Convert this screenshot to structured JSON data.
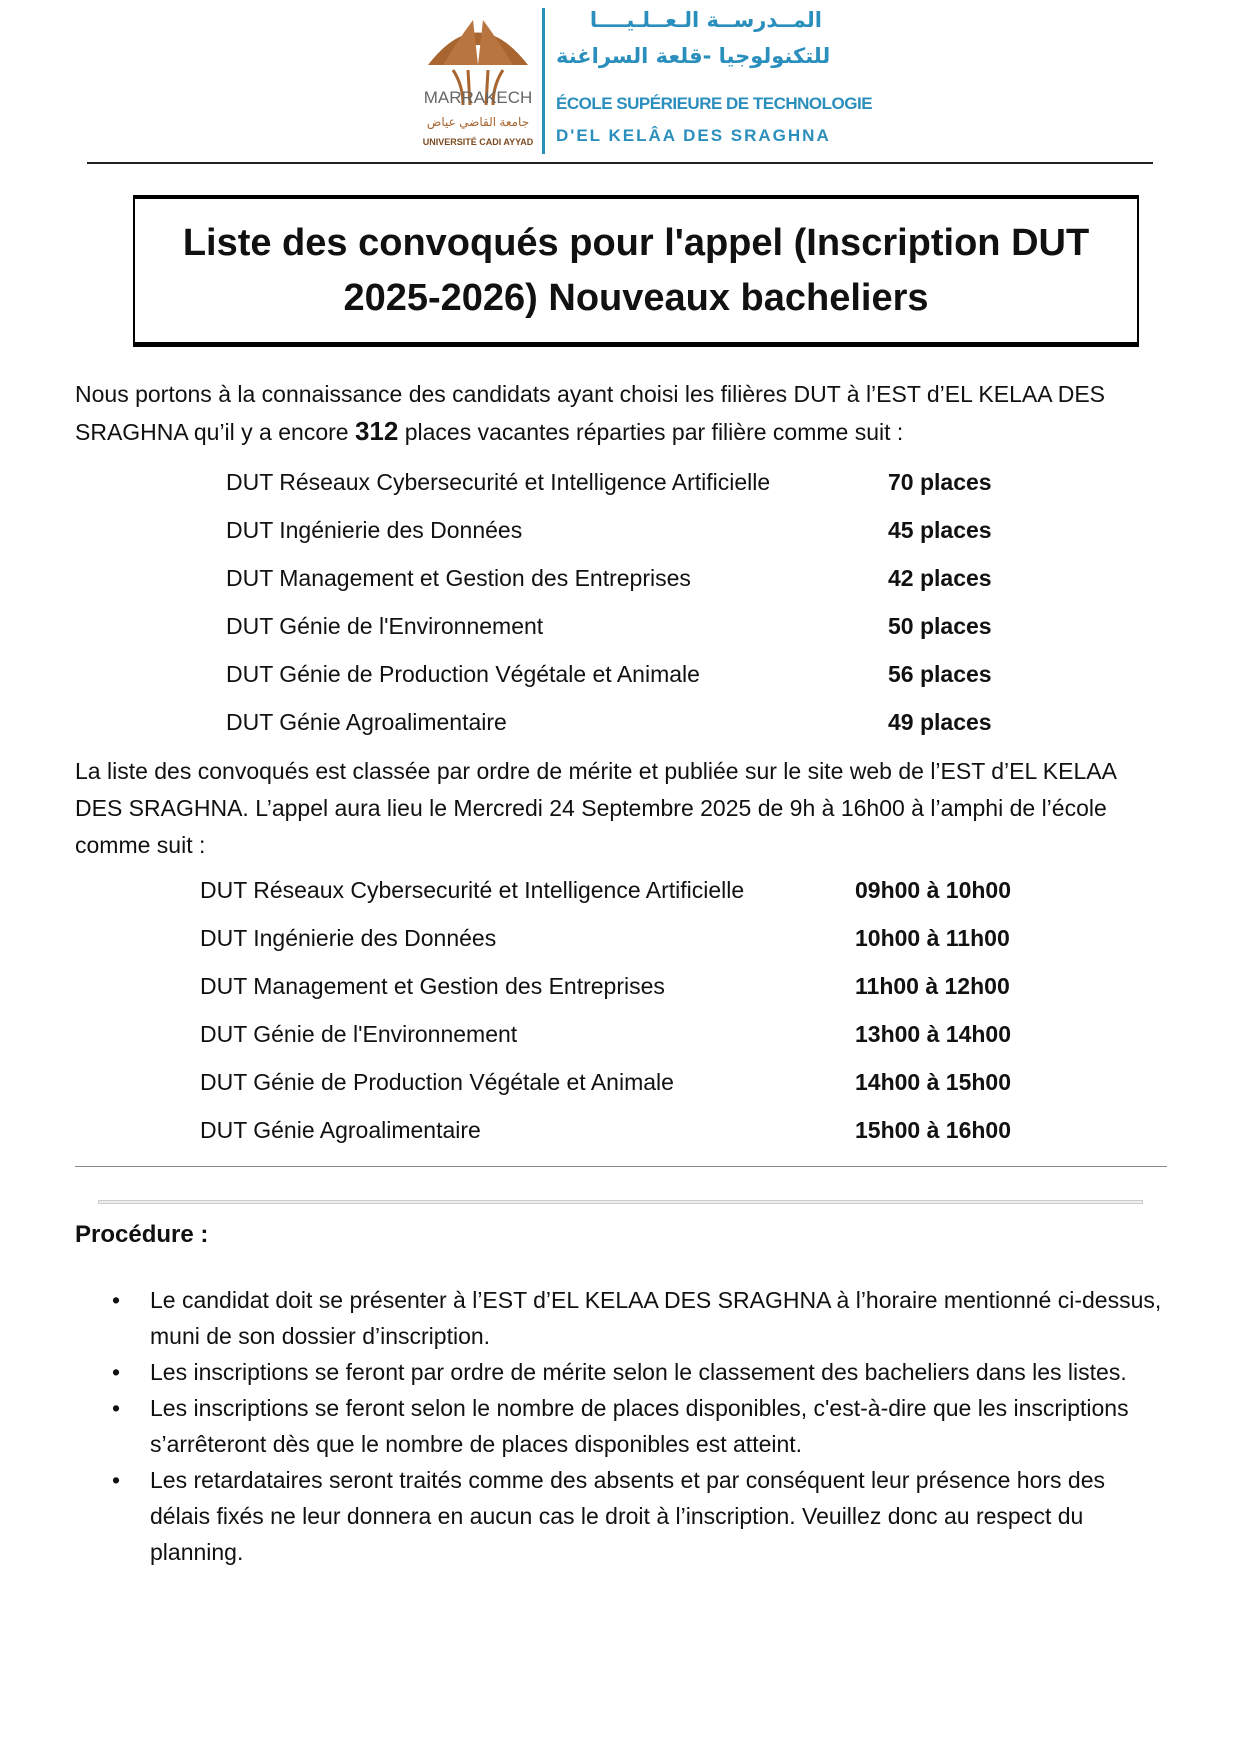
{
  "header": {
    "logo_text": "MARRAKECH",
    "logo_arabic": "جامعة القاضي عياض",
    "logo_university": "UNIVERSITÉ CADI AYYAD",
    "arabic_line1": "المــدرســة الـعــلـيــــا",
    "arabic_line2": "للتكنولوجيا -قلعة السراغنة",
    "school_line1": "ÉCOLE SUPÉRIEURE DE TECHNOLOGIE",
    "school_line2": "D'EL KELÂA DES SRAGHNA",
    "colors": {
      "blue": "#2b8fbd",
      "brown": "#a8652f"
    }
  },
  "title": "Liste des convoqués pour l'appel (Inscription DUT 2025-2026) Nouveaux bacheliers",
  "intro": {
    "before": "Nous portons à la connaissance des candidats ayant choisi les filières DUT à l’EST d’EL KELAA DES SRAGHNA qu’il y a encore ",
    "count": "312",
    "after": " places vacantes réparties par filière comme suit :"
  },
  "places": [
    {
      "filiere": "DUT Réseaux Cybersecurité et Intelligence Artificielle",
      "value": "70 places"
    },
    {
      "filiere": "DUT Ingénierie des Données",
      "value": "45 places"
    },
    {
      "filiere": "DUT Management et Gestion des Entreprises",
      "value": "42 places"
    },
    {
      "filiere": "DUT Génie de l'Environnement",
      "value": "50 places"
    },
    {
      "filiere": "DUT Génie de Production Végétale et Animale",
      "value": "56 places"
    },
    {
      "filiere": "DUT Génie Agroalimentaire",
      "value": "49 places"
    }
  ],
  "schedule_intro": "La liste des convoqués est classée par ordre de mérite et publiée sur le site web de l’EST d’EL KELAA DES SRAGHNA. L’appel aura lieu le Mercredi 24 Septembre 2025 de 9h à 16h00 à l’amphi de l’école comme suit :",
  "schedule": [
    {
      "filiere": "DUT Réseaux Cybersecurité et Intelligence Artificielle",
      "value": "09h00 à 10h00"
    },
    {
      "filiere": "DUT Ingénierie des Données",
      "value": "10h00 à 11h00"
    },
    {
      "filiere": "DUT Management et Gestion des Entreprises",
      "value": "11h00 à 12h00"
    },
    {
      "filiere": "DUT Génie de l'Environnement",
      "value": "13h00 à 14h00"
    },
    {
      "filiere": "DUT Génie de Production Végétale et Animale",
      "value": "14h00 à 15h00"
    },
    {
      "filiere": "DUT Génie Agroalimentaire",
      "value": "15h00 à 16h00"
    }
  ],
  "procedure_title": "Procédure :",
  "procedure": [
    "Le candidat doit se présenter à l’EST d’EL KELAA DES SRAGHNA à l’horaire mentionné ci-dessus, muni de son dossier d’inscription.",
    "Les inscriptions se feront par ordre de mérite selon le classement des bacheliers dans les listes.",
    "Les inscriptions se feront selon le nombre de places disponibles, c'est-à-dire que les inscriptions s’arrêteront dès que le nombre de places disponibles est atteint.",
    "Les retardataires seront traités comme des absents et par conséquent leur présence hors des délais fixés ne leur donnera en aucun cas le droit à l’inscription. Veuillez donc au respect du planning."
  ]
}
